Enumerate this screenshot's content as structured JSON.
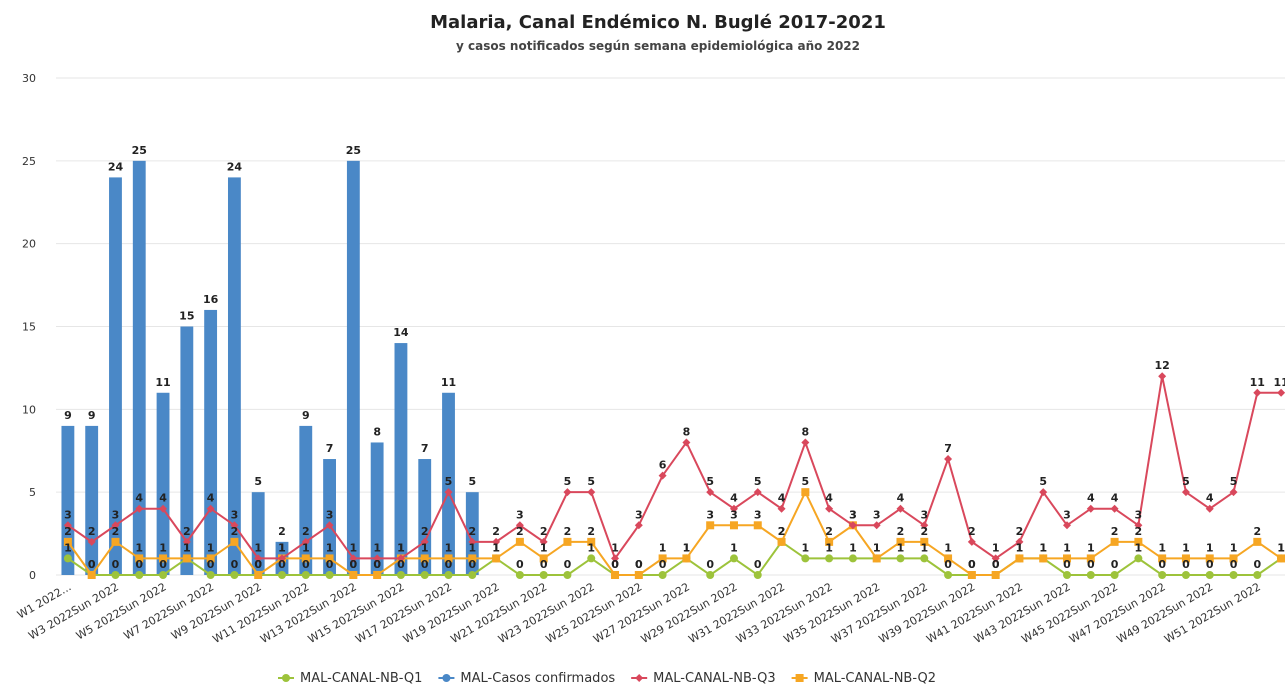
{
  "chart_data": {
    "type": "bar",
    "title": "Malaria, Canal Endémico N. Buglé 2017-2021",
    "subtitle": "y casos notificados según semana epidemiológica año 2022",
    "categories": [
      "W1 2022...",
      null,
      "W3 2022Sun 2022",
      null,
      "W5 2022Sun 2022",
      null,
      "W7 2022Sun 2022",
      null,
      "W9 2022Sun 2022",
      null,
      "W11 2022Sun 2022",
      null,
      "W13 2022Sun 2022",
      null,
      "W15 2022Sun 2022",
      null,
      "W17 2022Sun 2022",
      null,
      "W19 2022Sun 2022",
      null,
      "W21 2022Sun 2022",
      null,
      "W23 2022Sun 2022",
      null,
      "W25 2022Sun 2022",
      null,
      "W27 2022Sun 2022",
      null,
      "W29 2022Sun 2022",
      null,
      "W31 2022Sun 2022",
      null,
      "W33 2022Sun 2022",
      null,
      "W35 2022Sun 2022",
      null,
      "W37 2022Sun 2022",
      null,
      "W39 2022Sun 2022",
      null,
      "W41 2022Sun 2022",
      null,
      "W43 2022Sun 2022",
      null,
      "W45 2022Sun 2022",
      null,
      "W47 2022Sun 2022",
      null,
      "W49 2022Sun 2022",
      null,
      "W51 2022Sun 2022",
      null
    ],
    "ylim": [
      0,
      30
    ],
    "yticks": [
      0,
      5,
      10,
      15,
      20,
      25,
      30
    ],
    "grid": true,
    "series": [
      {
        "name": "MAL-CANAL-NB-Q1",
        "type": "line",
        "marker": "circle",
        "color": "#9dc33b",
        "values": [
          1,
          0,
          0,
          0,
          0,
          1,
          0,
          0,
          0,
          0,
          0,
          0,
          0,
          0,
          0,
          0,
          0,
          0,
          1,
          0,
          0,
          0,
          1,
          0,
          0,
          0,
          1,
          0,
          1,
          0,
          2,
          1,
          1,
          1,
          1,
          1,
          1,
          0,
          0,
          0,
          1,
          1,
          0,
          0,
          0,
          1,
          0,
          0,
          0,
          0,
          0,
          1
        ]
      },
      {
        "name": "MAL-Casos confirmados",
        "type": "bar",
        "marker": "circle",
        "color": "#4a88c7",
        "values": [
          9,
          9,
          24,
          25,
          11,
          15,
          16,
          24,
          5,
          2,
          9,
          7,
          25,
          8,
          14,
          7,
          11,
          5,
          null,
          null,
          null,
          null,
          null,
          null,
          null,
          null,
          null,
          null,
          null,
          null,
          null,
          null,
          null,
          null,
          null,
          null,
          null,
          null,
          null,
          null,
          null,
          null,
          null,
          null,
          null,
          null,
          null,
          null,
          null,
          null,
          null,
          null
        ]
      },
      {
        "name": "MAL-CANAL-NB-Q3",
        "type": "line",
        "marker": "diamond",
        "color": "#d9485c",
        "values": [
          3,
          2,
          3,
          4,
          4,
          2,
          4,
          3,
          1,
          1,
          2,
          3,
          1,
          1,
          1,
          2,
          5,
          2,
          2,
          3,
          2,
          5,
          5,
          1,
          3,
          6,
          8,
          5,
          4,
          5,
          4,
          8,
          4,
          3,
          3,
          4,
          3,
          7,
          2,
          1,
          2,
          5,
          3,
          4,
          4,
          3,
          12,
          5,
          4,
          5,
          11,
          11
        ]
      },
      {
        "name": "MAL-CANAL-NB-Q2",
        "type": "line",
        "marker": "square",
        "color": "#f6a623",
        "values": [
          2,
          0,
          2,
          1,
          1,
          1,
          1,
          2,
          0,
          1,
          1,
          1,
          0,
          0,
          1,
          1,
          1,
          1,
          1,
          2,
          1,
          2,
          2,
          0,
          0,
          1,
          1,
          3,
          3,
          3,
          2,
          5,
          2,
          3,
          1,
          2,
          2,
          1,
          0,
          0,
          1,
          1,
          1,
          1,
          2,
          2,
          1,
          1,
          1,
          1,
          2,
          1
        ]
      }
    ]
  }
}
